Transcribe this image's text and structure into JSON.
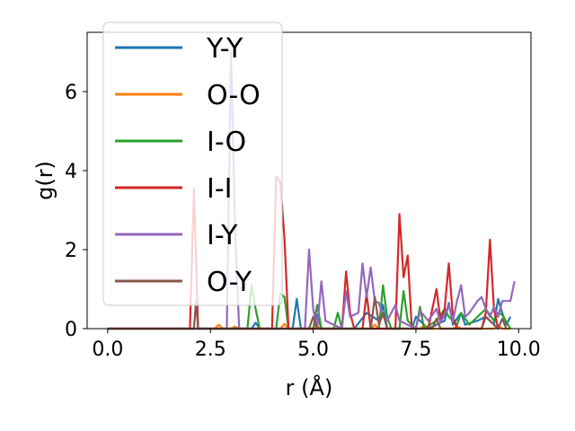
{
  "chart_data": {
    "type": "line",
    "xlabel": "r (Å)",
    "ylabel": "g(r)",
    "xlim": [
      -0.5,
      10.3
    ],
    "ylim": [
      0,
      7.5
    ],
    "xticks": [
      0.0,
      2.5,
      5.0,
      7.5,
      10.0
    ],
    "xtick_labels": [
      "0.0",
      "2.5",
      "5.0",
      "7.5",
      "10.0"
    ],
    "yticks": [
      0,
      2,
      4,
      6
    ],
    "ytick_labels": [
      "0",
      "2",
      "4",
      "6"
    ],
    "grid": false,
    "legend_position": "top-left",
    "series": [
      {
        "name": "Y-Y",
        "color": "#1f77b4",
        "x": [
          0,
          3.5,
          3.6,
          3.7,
          4.0,
          4.5,
          4.6,
          4.7,
          5.0,
          5.1,
          5.2,
          6.0,
          6.3,
          6.6,
          6.7,
          6.8,
          7.0,
          7.4,
          7.5,
          7.8,
          8.2,
          8.3,
          8.4,
          8.6,
          8.7,
          9.0,
          9.2,
          9.4,
          9.5,
          9.6,
          9.7,
          9.8
        ],
        "y": [
          0,
          0,
          0.15,
          0,
          0,
          0,
          0.75,
          0,
          0,
          0.35,
          0,
          0,
          0.4,
          0.2,
          0.6,
          0,
          0,
          0,
          0.3,
          0,
          0.2,
          0.65,
          0.1,
          0.4,
          0.1,
          0.2,
          0.3,
          0.1,
          0.75,
          0.4,
          0.1,
          0.3
        ]
      },
      {
        "name": "O-O",
        "color": "#ff7f0e",
        "x": [
          0,
          2.6,
          2.7,
          2.8,
          3.0,
          3.1,
          3.2,
          4.2,
          4.3,
          4.4,
          5.0,
          5.1,
          5.2,
          6.4,
          6.5,
          6.6,
          7.6,
          7.7,
          7.8,
          8.4,
          8.5,
          8.6,
          9.4,
          9.5,
          9.6,
          9.8
        ],
        "y": [
          0,
          0,
          0.1,
          0,
          0,
          0.05,
          0,
          0,
          0.12,
          0,
          0,
          0.05,
          0,
          0,
          0.1,
          0,
          0,
          0.08,
          0,
          0,
          0.06,
          0,
          0,
          0.08,
          0,
          0
        ]
      },
      {
        "name": "I-O",
        "color": "#2ca02c",
        "x": [
          0,
          3.4,
          3.5,
          3.6,
          3.7,
          4.1,
          4.2,
          4.3,
          4.4,
          5.0,
          5.1,
          5.2,
          5.5,
          5.6,
          5.7,
          6.6,
          6.7,
          6.8,
          6.9,
          7.1,
          7.2,
          7.3,
          7.5,
          7.6,
          7.7,
          8.0,
          8.2,
          8.3,
          8.5,
          8.6,
          8.8,
          9.0,
          9.2,
          9.4,
          9.5,
          9.6,
          9.8
        ],
        "y": [
          0,
          0,
          1.1,
          0.5,
          0,
          0,
          0.9,
          0.8,
          0,
          0,
          0.6,
          0,
          0,
          0.4,
          0,
          0,
          1.1,
          0.3,
          0,
          0,
          0.95,
          0.2,
          0,
          0.55,
          0,
          0.2,
          0.5,
          0.3,
          0.1,
          0.4,
          0.1,
          0.3,
          0.5,
          0.2,
          0.4,
          0.35,
          0
        ]
      },
      {
        "name": "I-I",
        "color": "#d62728",
        "x": [
          0,
          2.0,
          2.1,
          2.2,
          4.0,
          4.1,
          4.2,
          4.3,
          4.4,
          5.7,
          5.8,
          5.9,
          6.0,
          6.2,
          6.3,
          6.4,
          7.0,
          7.1,
          7.2,
          7.3,
          7.4,
          7.8,
          7.9,
          8.0,
          8.1,
          8.2,
          8.3,
          8.4,
          8.5,
          9.1,
          9.2,
          9.3,
          9.4,
          9.5
        ],
        "y": [
          0,
          0,
          3.55,
          0,
          0,
          3.85,
          3.7,
          2.3,
          0,
          0,
          1.45,
          0.4,
          0,
          0,
          0.9,
          0,
          0,
          2.9,
          1.3,
          1.85,
          0,
          0,
          0.5,
          1.0,
          0.2,
          0.5,
          1.65,
          0.3,
          0,
          0,
          0.4,
          2.25,
          0.5,
          0
        ]
      },
      {
        "name": "I-Y",
        "color": "#9467bd",
        "x": [
          0,
          2.9,
          3.0,
          3.1,
          3.2,
          4.8,
          4.9,
          5.0,
          5.1,
          5.2,
          5.3,
          5.7,
          5.8,
          5.9,
          6.1,
          6.2,
          6.3,
          6.4,
          6.5,
          6.6,
          6.7,
          6.8,
          7.0,
          7.1,
          7.5,
          7.6,
          7.8,
          8.0,
          8.1,
          8.3,
          8.4,
          8.5,
          8.6,
          8.7,
          8.8,
          9.0,
          9.1,
          9.2,
          9.3,
          9.4,
          9.5,
          9.6,
          9.8,
          9.9
        ],
        "y": [
          0,
          0,
          7.0,
          2.5,
          0,
          0,
          2.0,
          0.5,
          0,
          1.2,
          0.2,
          0,
          0.95,
          0.3,
          0.4,
          1.65,
          0.8,
          1.55,
          0.7,
          0.65,
          0.3,
          0.2,
          0.6,
          0.2,
          0,
          0.45,
          0.2,
          0.5,
          0.15,
          0.6,
          0.2,
          0.7,
          1.1,
          0.3,
          0.4,
          0.7,
          0.8,
          0.5,
          0.3,
          0.55,
          0.3,
          0.7,
          0.7,
          1.2
        ]
      },
      {
        "name": "O-Y",
        "color": "#8c564b",
        "x": [
          0,
          2.1,
          2.15,
          2.2,
          4.9,
          5.0,
          5.1,
          6.4,
          6.5,
          6.6,
          6.7,
          6.8,
          7.9,
          8.0,
          8.1,
          9.1,
          9.2,
          9.3,
          9.5,
          9.6,
          9.7
        ],
        "y": [
          0,
          0,
          0.7,
          0,
          0,
          0.3,
          0,
          0,
          0.8,
          0.1,
          0.4,
          0,
          0,
          0.25,
          0,
          0,
          0.3,
          0.2,
          0,
          0.25,
          0
        ]
      }
    ]
  }
}
